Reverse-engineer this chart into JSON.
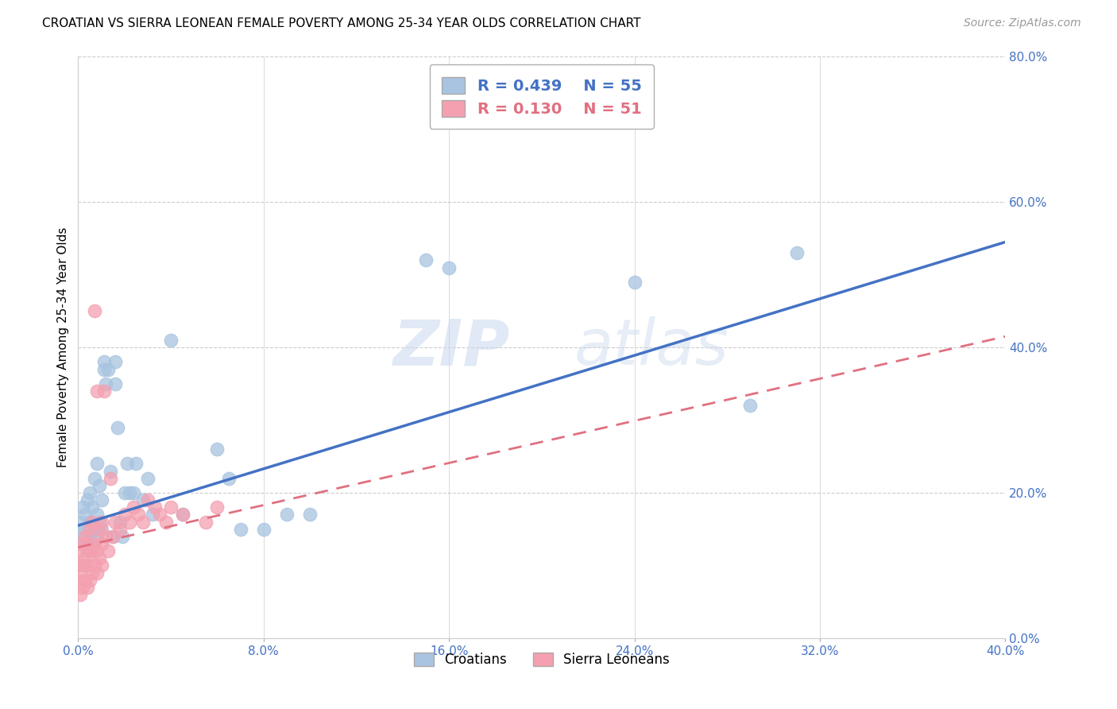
{
  "title": "CROATIAN VS SIERRA LEONEAN FEMALE POVERTY AMONG 25-34 YEAR OLDS CORRELATION CHART",
  "source": "Source: ZipAtlas.com",
  "ylabel": "Female Poverty Among 25-34 Year Olds",
  "xlim": [
    0.0,
    0.4
  ],
  "ylim": [
    0.0,
    0.8
  ],
  "xticks": [
    0.0,
    0.08,
    0.16,
    0.24,
    0.32,
    0.4
  ],
  "yticks": [
    0.0,
    0.2,
    0.4,
    0.6,
    0.8
  ],
  "xtick_labels": [
    "0.0%",
    "8.0%",
    "16.0%",
    "24.0%",
    "32.0%",
    "40.0%"
  ],
  "ytick_labels": [
    "0.0%",
    "20.0%",
    "40.0%",
    "60.0%",
    "80.0%"
  ],
  "croatian_color": "#a8c4e0",
  "sierra_color": "#f4a0b0",
  "line_color_croatian": "#4472c4",
  "line_color_sierra": "#e07080",
  "r_croatian": "0.439",
  "n_croatian": "55",
  "r_sierra": "0.130",
  "n_sierra": "51",
  "watermark_zip": "ZIP",
  "watermark_atlas": "atlas",
  "croatian_x": [
    0.001,
    0.001,
    0.002,
    0.002,
    0.003,
    0.003,
    0.003,
    0.004,
    0.004,
    0.005,
    0.005,
    0.005,
    0.006,
    0.006,
    0.007,
    0.007,
    0.008,
    0.008,
    0.008,
    0.009,
    0.009,
    0.01,
    0.01,
    0.011,
    0.011,
    0.012,
    0.013,
    0.014,
    0.015,
    0.016,
    0.016,
    0.017,
    0.018,
    0.019,
    0.02,
    0.021,
    0.022,
    0.024,
    0.025,
    0.028,
    0.03,
    0.032,
    0.04,
    0.045,
    0.06,
    0.065,
    0.07,
    0.08,
    0.09,
    0.1,
    0.15,
    0.16,
    0.24,
    0.29,
    0.31
  ],
  "croatian_y": [
    0.13,
    0.16,
    0.14,
    0.18,
    0.1,
    0.15,
    0.17,
    0.12,
    0.19,
    0.14,
    0.16,
    0.2,
    0.13,
    0.18,
    0.15,
    0.22,
    0.14,
    0.17,
    0.24,
    0.16,
    0.21,
    0.15,
    0.19,
    0.37,
    0.38,
    0.35,
    0.37,
    0.23,
    0.14,
    0.35,
    0.38,
    0.29,
    0.16,
    0.14,
    0.2,
    0.24,
    0.2,
    0.2,
    0.24,
    0.19,
    0.22,
    0.17,
    0.41,
    0.17,
    0.26,
    0.22,
    0.15,
    0.15,
    0.17,
    0.17,
    0.52,
    0.51,
    0.49,
    0.32,
    0.53
  ],
  "sierra_x": [
    0.0,
    0.0,
    0.001,
    0.001,
    0.001,
    0.002,
    0.002,
    0.002,
    0.003,
    0.003,
    0.003,
    0.004,
    0.004,
    0.004,
    0.005,
    0.005,
    0.005,
    0.006,
    0.006,
    0.006,
    0.007,
    0.007,
    0.007,
    0.008,
    0.008,
    0.008,
    0.009,
    0.009,
    0.01,
    0.01,
    0.01,
    0.011,
    0.012,
    0.013,
    0.014,
    0.015,
    0.016,
    0.018,
    0.02,
    0.022,
    0.024,
    0.026,
    0.028,
    0.03,
    0.033,
    0.035,
    0.038,
    0.04,
    0.045,
    0.055,
    0.06
  ],
  "sierra_y": [
    0.08,
    0.1,
    0.06,
    0.09,
    0.12,
    0.07,
    0.1,
    0.13,
    0.08,
    0.11,
    0.14,
    0.07,
    0.1,
    0.13,
    0.08,
    0.12,
    0.15,
    0.09,
    0.12,
    0.16,
    0.1,
    0.13,
    0.45,
    0.09,
    0.12,
    0.34,
    0.11,
    0.15,
    0.1,
    0.13,
    0.16,
    0.34,
    0.14,
    0.12,
    0.22,
    0.14,
    0.16,
    0.15,
    0.17,
    0.16,
    0.18,
    0.17,
    0.16,
    0.19,
    0.18,
    0.17,
    0.16,
    0.18,
    0.17,
    0.16,
    0.18
  ],
  "croatian_line_x0": 0.0,
  "croatian_line_y0": 0.155,
  "croatian_line_x1": 0.4,
  "croatian_line_y1": 0.545,
  "sierra_line_x0": 0.0,
  "sierra_line_y0": 0.125,
  "sierra_line_x1": 0.4,
  "sierra_line_y1": 0.415
}
